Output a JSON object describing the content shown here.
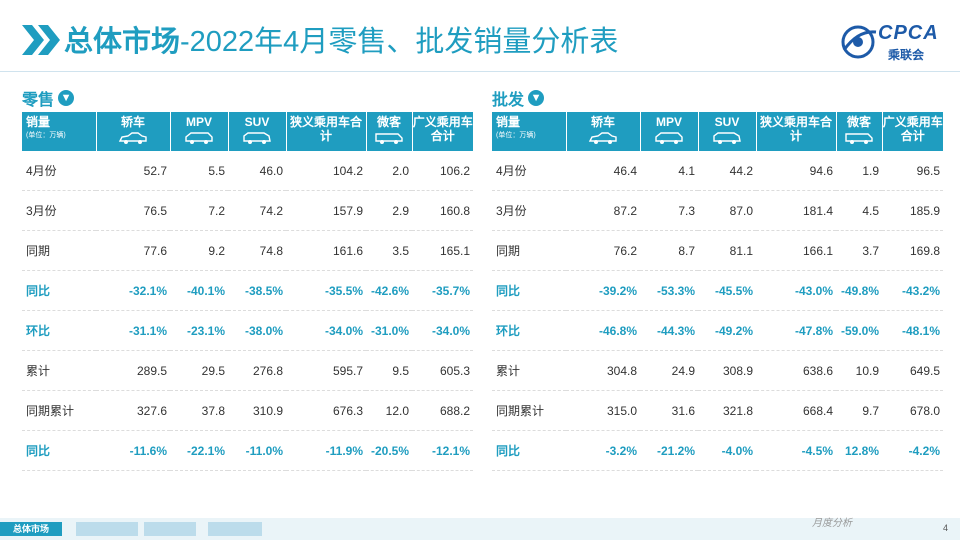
{
  "header": {
    "title_main": "总体市场",
    "title_rest": "-2022年4月零售、批发销量分析表",
    "logo_text": "CPCA",
    "logo_cn": "乘联会"
  },
  "tables": [
    {
      "section_title": "零售",
      "unit_label": "销量",
      "unit_note": "(单位：万辆)",
      "columns": [
        "轿车",
        "MPV",
        "SUV",
        "狭义乘用车合计",
        "微客",
        "广义乘用车合计"
      ],
      "rows": [
        {
          "label": "4月份",
          "values": [
            "52.7",
            "5.5",
            "46.0",
            "104.2",
            "2.0",
            "106.2"
          ],
          "pct": false
        },
        {
          "label": "3月份",
          "values": [
            "76.5",
            "7.2",
            "74.2",
            "157.9",
            "2.9",
            "160.8"
          ],
          "pct": false
        },
        {
          "label": "同期",
          "values": [
            "77.6",
            "9.2",
            "74.8",
            "161.6",
            "3.5",
            "165.1"
          ],
          "pct": false
        },
        {
          "label": "同比",
          "values": [
            "-32.1%",
            "-40.1%",
            "-38.5%",
            "-35.5%",
            "-42.6%",
            "-35.7%"
          ],
          "pct": true
        },
        {
          "label": "环比",
          "values": [
            "-31.1%",
            "-23.1%",
            "-38.0%",
            "-34.0%",
            "-31.0%",
            "-34.0%"
          ],
          "pct": true
        },
        {
          "label": "累计",
          "values": [
            "289.5",
            "29.5",
            "276.8",
            "595.7",
            "9.5",
            "605.3"
          ],
          "pct": false
        },
        {
          "label": "同期累计",
          "values": [
            "327.6",
            "37.8",
            "310.9",
            "676.3",
            "12.0",
            "688.2"
          ],
          "pct": false
        },
        {
          "label": "同比",
          "values": [
            "-11.6%",
            "-22.1%",
            "-11.0%",
            "-11.9%",
            "-20.5%",
            "-12.1%"
          ],
          "pct": true
        }
      ]
    },
    {
      "section_title": "批发",
      "unit_label": "销量",
      "unit_note": "(单位：万辆)",
      "columns": [
        "轿车",
        "MPV",
        "SUV",
        "狭义乘用车合计",
        "微客",
        "广义乘用车合计"
      ],
      "rows": [
        {
          "label": "4月份",
          "values": [
            "46.4",
            "4.1",
            "44.2",
            "94.6",
            "1.9",
            "96.5"
          ],
          "pct": false
        },
        {
          "label": "3月份",
          "values": [
            "87.2",
            "7.3",
            "87.0",
            "181.4",
            "4.5",
            "185.9"
          ],
          "pct": false
        },
        {
          "label": "同期",
          "values": [
            "76.2",
            "8.7",
            "81.1",
            "166.1",
            "3.7",
            "169.8"
          ],
          "pct": false
        },
        {
          "label": "同比",
          "values": [
            "-39.2%",
            "-53.3%",
            "-45.5%",
            "-43.0%",
            "-49.8%",
            "-43.2%"
          ],
          "pct": true
        },
        {
          "label": "环比",
          "values": [
            "-46.8%",
            "-44.3%",
            "-49.2%",
            "-47.8%",
            "-59.0%",
            "-48.1%"
          ],
          "pct": true
        },
        {
          "label": "累计",
          "values": [
            "304.8",
            "24.9",
            "308.9",
            "638.6",
            "10.9",
            "649.5"
          ],
          "pct": false
        },
        {
          "label": "同期累计",
          "values": [
            "315.0",
            "31.6",
            "321.8",
            "668.4",
            "9.7",
            "678.0"
          ],
          "pct": false
        },
        {
          "label": "同比",
          "values": [
            "-3.2%",
            "-21.2%",
            "-4.0%",
            "-4.5%",
            "12.8%",
            "-4.2%"
          ],
          "pct": true
        }
      ]
    }
  ],
  "footer": {
    "tabs": [
      "总体市场"
    ],
    "page_number": "4",
    "watermark_text": "月度分析"
  },
  "colors": {
    "accent": "#1f9dc0",
    "logo": "#1d5aa8"
  }
}
